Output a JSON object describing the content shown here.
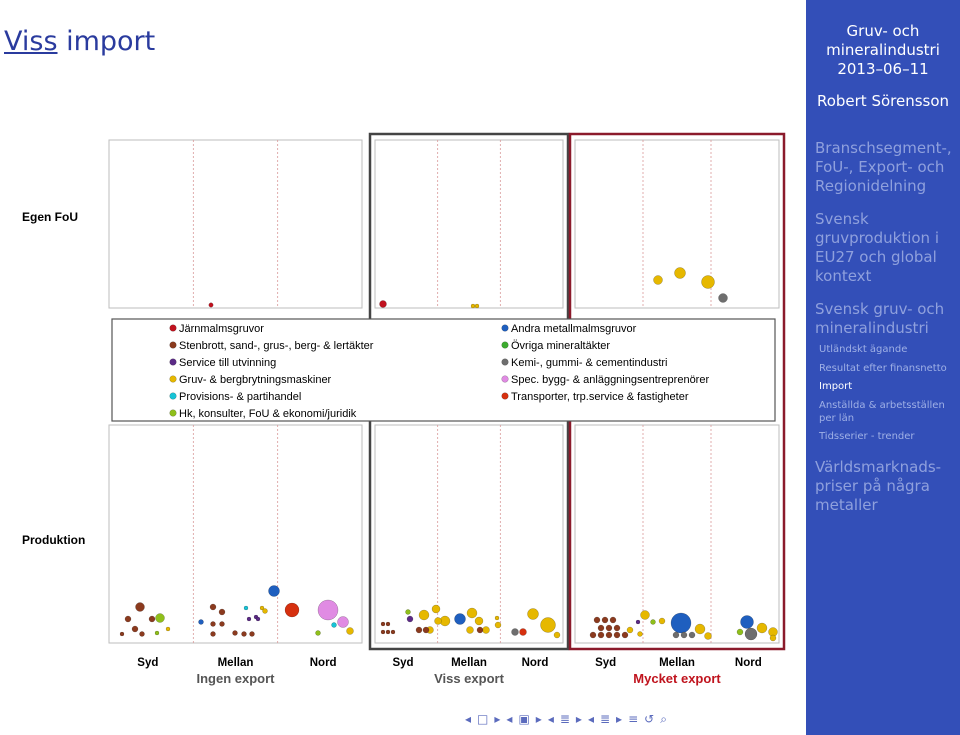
{
  "header": {
    "title_link": "Viss",
    "title_rest": " import"
  },
  "sidebar": {
    "heading_lines": [
      "Gruv- och",
      "mineralindustri",
      "2013–06–11"
    ],
    "author": "Robert Sörensson",
    "sections": [
      {
        "lines": [
          "Branschsegment-,",
          "FoU-, Export- och",
          "Regionidelning"
        ]
      },
      {
        "lines": [
          "Svensk",
          "gruvproduktion i",
          "EU27 och global",
          "kontext"
        ]
      },
      {
        "lines": [
          "Svensk gruv- och",
          "mineralindustri"
        ]
      },
      {
        "lines": [
          "Världsmarknads-",
          "priser på några",
          "metaller"
        ]
      }
    ],
    "subitems": [
      "Utländskt ägande",
      "Resultat efter finansnetto",
      "Import",
      "Anställda & arbetsställen",
      "per län",
      "Tidsserier - trender"
    ],
    "active_subitem": "Import"
  },
  "chart_data": {
    "type": "scatter",
    "row_labels": [
      "Egen FoU",
      "Produktion"
    ],
    "panel_labels": [
      "Ingen export",
      "Viss export",
      "Mycket export"
    ],
    "column_labels": [
      "Syd",
      "Mellan",
      "Nord"
    ],
    "legend_left": [
      {
        "label": "Järnmalmsgruvor",
        "color": "#c1121f"
      },
      {
        "label": "Stenbrott, sand-, grus-, berg- & lertäkter",
        "color": "#8b3a1e"
      },
      {
        "label": "Service till utvinning",
        "color": "#5b2a86"
      },
      {
        "label": "Gruv- & bergbrytningsmaskiner",
        "color": "#e6b800"
      },
      {
        "label": "Provisions- & partihandel",
        "color": "#17c3d6"
      },
      {
        "label": "Hk, konsulter, FoU & ekonomi/juridik",
        "color": "#8fbf1a"
      }
    ],
    "legend_right": [
      {
        "label": "Andra metallmalmsgruvor",
        "color": "#1f5fbf"
      },
      {
        "label": "Övriga mineraltäkter",
        "color": "#3cab2f"
      },
      {
        "label": "Kemi-, gummi- & cementindustri",
        "color": "#6e6e6e"
      },
      {
        "label": "Spec. bygg- & anläggningsentreprenörer",
        "color": "#e08be3"
      },
      {
        "label": "Transporter, trp.service & fastigheter",
        "color": "#d6300f"
      }
    ],
    "panel_colors": [
      "#ffffff",
      "#444444",
      "#8b1a2b"
    ]
  },
  "navigation": {
    "symbols": [
      "◂",
      "□",
      "▸",
      "◂",
      "▣",
      "▸",
      "◂",
      "≣",
      "▸",
      "◂",
      "≣",
      "▸",
      "≡",
      "↺",
      "⌕"
    ]
  }
}
